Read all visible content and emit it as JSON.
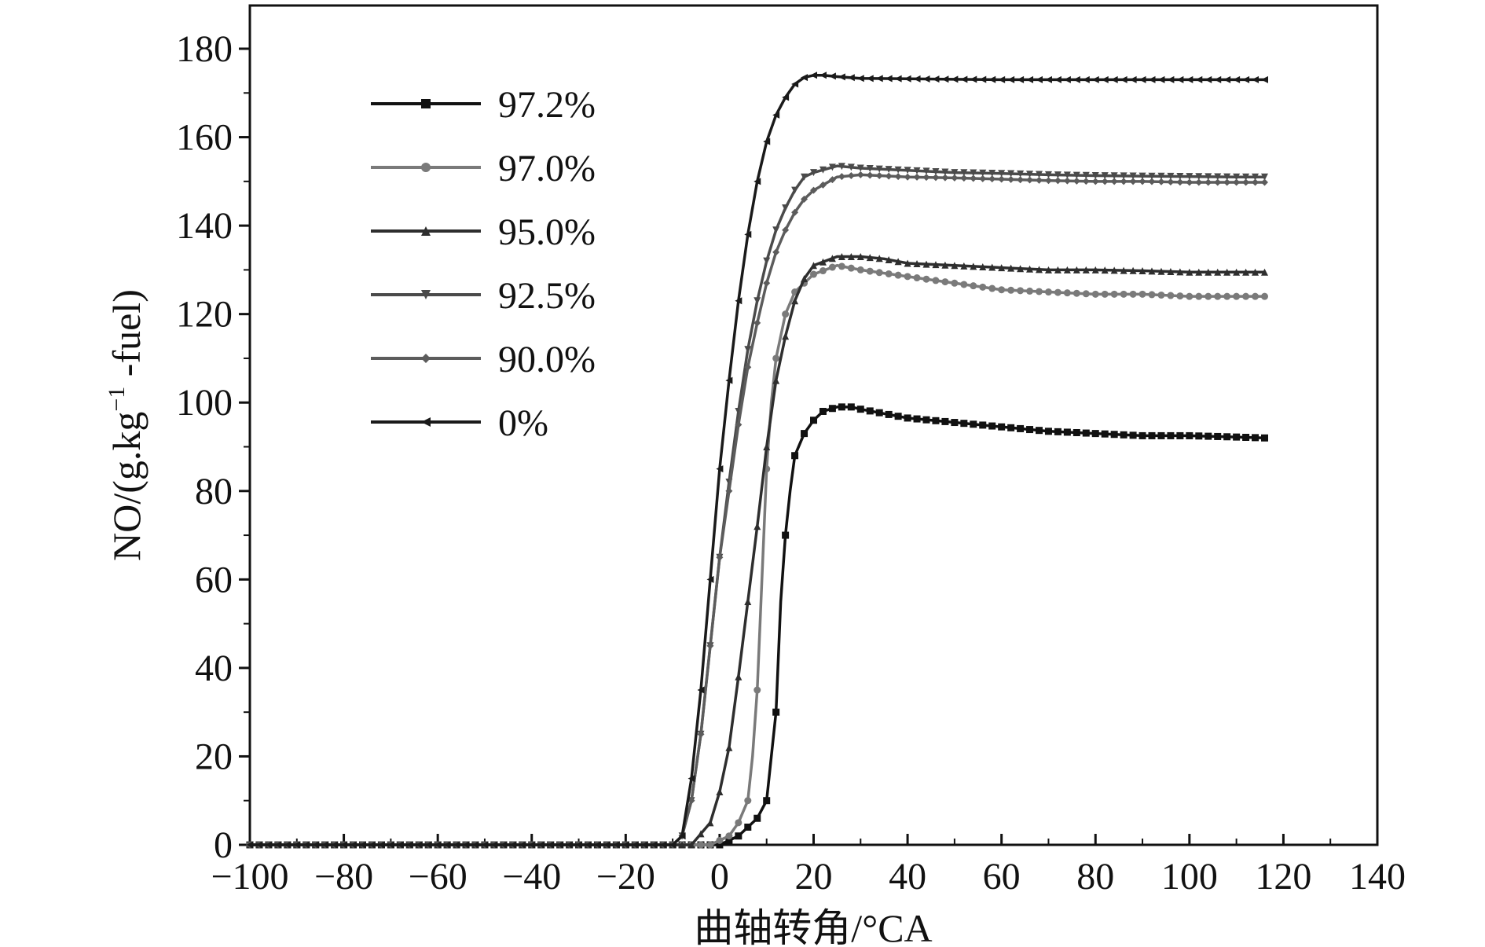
{
  "chart_data": {
    "type": "line",
    "xlabel": "曲轴转角/°CA",
    "ylabel_main": "NO/(g.kg",
    "ylabel_sup": "−1",
    "ylabel_tail": " -fuel)",
    "xlim": [
      -100,
      140
    ],
    "ylim": [
      0,
      190
    ],
    "xticks": [
      -100,
      -80,
      -60,
      -40,
      -20,
      0,
      20,
      40,
      60,
      80,
      100,
      120,
      140
    ],
    "xtick_labels": [
      "−100",
      "−80",
      "−60",
      "−40",
      "−20",
      "0",
      "20",
      "40",
      "60",
      "80",
      "100",
      "120",
      "140"
    ],
    "yticks": [
      0,
      20,
      40,
      60,
      80,
      100,
      120,
      140,
      160,
      180
    ],
    "ytick_labels": [
      "0",
      "20",
      "40",
      "60",
      "80",
      "100",
      "120",
      "140",
      "160",
      "180"
    ],
    "grid": false,
    "legend_position": "top-left",
    "series": [
      {
        "name": "97.2%",
        "color": "#111111",
        "marker": "square",
        "x": [
          -100,
          -20,
          0,
          4,
          8,
          10,
          12,
          13,
          14,
          15,
          16,
          18,
          20,
          22,
          25,
          28,
          30,
          35,
          40,
          50,
          60,
          70,
          80,
          90,
          100,
          110,
          116
        ],
        "y": [
          0,
          0,
          0,
          2,
          6,
          10,
          30,
          55,
          70,
          80,
          88,
          93,
          96,
          98,
          99,
          99,
          98.5,
          97.5,
          96.5,
          95.5,
          94.5,
          93.5,
          93,
          92.5,
          92.5,
          92.2,
          92
        ]
      },
      {
        "name": "97.0%",
        "color": "#7a7a7a",
        "marker": "circle",
        "x": [
          -100,
          -20,
          -2,
          2,
          4,
          6,
          7,
          8,
          9,
          10,
          11,
          12,
          14,
          16,
          20,
          25,
          30,
          40,
          50,
          60,
          70,
          80,
          90,
          100,
          110,
          116
        ],
        "y": [
          0,
          0,
          0,
          2,
          5,
          10,
          20,
          35,
          60,
          85,
          100,
          110,
          120,
          125,
          129,
          131,
          130,
          128.5,
          127,
          125.5,
          125,
          124.5,
          124.5,
          124,
          124,
          124
        ]
      },
      {
        "name": "95.0%",
        "color": "#2e2e2e",
        "marker": "triangle-up",
        "x": [
          -100,
          -20,
          -6,
          -2,
          0,
          2,
          4,
          6,
          8,
          10,
          12,
          14,
          16,
          18,
          20,
          25,
          30,
          35,
          40,
          50,
          60,
          70,
          80,
          90,
          100,
          110,
          116
        ],
        "y": [
          0,
          0,
          0,
          5,
          12,
          22,
          38,
          55,
          72,
          90,
          105,
          115,
          123,
          128,
          131,
          133,
          133,
          132.5,
          131.5,
          131,
          130.5,
          130,
          130,
          129.8,
          129.5,
          129.5,
          129.5
        ]
      },
      {
        "name": "92.5%",
        "color": "#4a4a4a",
        "marker": "triangle-down",
        "x": [
          -100,
          -20,
          -10,
          -8,
          -6,
          -4,
          -2,
          0,
          2,
          4,
          6,
          8,
          10,
          12,
          14,
          16,
          18,
          20,
          25,
          30,
          40,
          50,
          60,
          70,
          80,
          90,
          100,
          110,
          116
        ],
        "y": [
          0,
          0,
          0,
          2,
          10,
          25,
          45,
          65,
          82,
          98,
          112,
          123,
          132,
          139,
          144,
          148,
          151,
          152,
          153.5,
          153,
          152.5,
          152,
          151.8,
          151.5,
          151.3,
          151.2,
          151.1,
          151,
          151
        ]
      },
      {
        "name": "90.0%",
        "color": "#5c5c5c",
        "marker": "diamond",
        "x": [
          -100,
          -20,
          -10,
          -8,
          -6,
          -4,
          -2,
          0,
          2,
          4,
          6,
          8,
          10,
          12,
          14,
          16,
          18,
          20,
          25,
          30,
          40,
          50,
          60,
          70,
          80,
          90,
          100,
          110,
          116
        ],
        "y": [
          0,
          0,
          0,
          2,
          10,
          25,
          45,
          65,
          80,
          95,
          108,
          118,
          127,
          134,
          139,
          143,
          146,
          148,
          151,
          151.5,
          151,
          150.8,
          150.5,
          150.2,
          150,
          150,
          149.8,
          149.8,
          149.8
        ]
      },
      {
        "name": "0%",
        "color": "#1a1a1a",
        "marker": "triangle-left",
        "x": [
          -100,
          -20,
          -10,
          -8,
          -6,
          -4,
          -2,
          0,
          2,
          4,
          6,
          8,
          10,
          12,
          14,
          16,
          18,
          20,
          22,
          25,
          30,
          40,
          50,
          60,
          70,
          80,
          90,
          100,
          110,
          116
        ],
        "y": [
          0,
          0,
          0,
          2,
          15,
          35,
          60,
          85,
          105,
          123,
          138,
          150,
          159,
          165,
          169,
          172,
          173.5,
          174,
          174,
          173.7,
          173.3,
          173.2,
          173.1,
          173,
          173,
          173,
          173,
          173,
          173,
          173
        ]
      }
    ]
  }
}
